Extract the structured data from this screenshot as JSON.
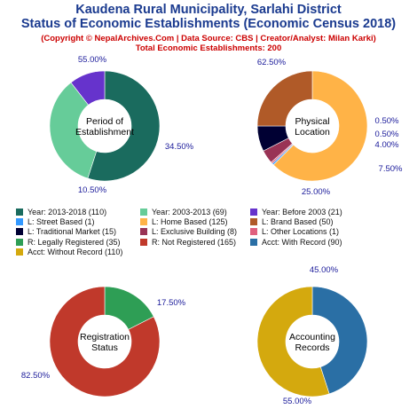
{
  "header": {
    "title_line1": "Kaudena Rural Municipality, Sarlahi District",
    "title_line2": "Status of Economic Establishments (Economic Census 2018)",
    "copyright": "(Copyright © NepalArchives.Com | Data Source: CBS | Creator/Analyst: Milan Karki)",
    "total": "Total Economic Establishments: 200"
  },
  "chart_data": [
    {
      "type": "pie",
      "center_label": [
        "Period of",
        "Establishment"
      ],
      "slices": [
        {
          "label": "Year: 2013-2018",
          "value": 110,
          "pct": "55.00%",
          "color": "#1a6b5e"
        },
        {
          "label": "Year: 2003-2013",
          "value": 69,
          "pct": "34.50%",
          "color": "#66cc99"
        },
        {
          "label": "Year: Before 2003",
          "value": 21,
          "pct": "10.50%",
          "color": "#6633cc"
        }
      ]
    },
    {
      "type": "pie",
      "center_label": [
        "Physical",
        "Location"
      ],
      "slices": [
        {
          "label": "L: Home Based",
          "value": 125,
          "pct": "62.50%",
          "color": "#ffb347"
        },
        {
          "label": "L: Street Based",
          "value": 1,
          "pct": "0.50%",
          "color": "#3399ff"
        },
        {
          "label": "L: Other Locations",
          "value": 1,
          "pct": "0.50%",
          "color": "#e0607e"
        },
        {
          "label": "L: Exclusive Building",
          "value": 8,
          "pct": "4.00%",
          "color": "#993355"
        },
        {
          "label": "L: Traditional Market",
          "value": 15,
          "pct": "7.50%",
          "color": "#000033"
        },
        {
          "label": "L: Brand Based",
          "value": 50,
          "pct": "25.00%",
          "color": "#b05a28"
        }
      ]
    },
    {
      "type": "pie",
      "center_label": [
        "Registration",
        "Status"
      ],
      "slices": [
        {
          "label": "R: Legally Registered",
          "value": 35,
          "pct": "17.50%",
          "color": "#2e9e55"
        },
        {
          "label": "R: Not Registered",
          "value": 165,
          "pct": "82.50%",
          "color": "#c0392b"
        }
      ]
    },
    {
      "type": "pie",
      "center_label": [
        "Accounting",
        "Records"
      ],
      "slices": [
        {
          "label": "Acct: With Record",
          "value": 90,
          "pct": "45.00%",
          "color": "#2a6fa5"
        },
        {
          "label": "Acct: Without Record",
          "value": 110,
          "pct": "55.00%",
          "color": "#d4a90e"
        }
      ]
    }
  ],
  "legend": [
    {
      "text": "Year: 2013-2018 (110)",
      "color": "#1a6b5e"
    },
    {
      "text": "Year: 2003-2013 (69)",
      "color": "#66cc99"
    },
    {
      "text": "Year: Before 2003 (21)",
      "color": "#6633cc"
    },
    {
      "text": "L: Street Based (1)",
      "color": "#3399ff"
    },
    {
      "text": "L: Home Based (125)",
      "color": "#ffb347"
    },
    {
      "text": "L: Brand Based (50)",
      "color": "#b05a28"
    },
    {
      "text": "L: Traditional Market (15)",
      "color": "#000033"
    },
    {
      "text": "L: Exclusive Building (8)",
      "color": "#993355"
    },
    {
      "text": "L: Other Locations (1)",
      "color": "#e0607e"
    },
    {
      "text": "R: Legally Registered (35)",
      "color": "#2e9e55"
    },
    {
      "text": "R: Not Registered (165)",
      "color": "#c0392b"
    },
    {
      "text": "Acct: With Record (90)",
      "color": "#2a6fa5"
    },
    {
      "text": "Acct: Without Record (110)",
      "color": "#d4a90e"
    }
  ]
}
